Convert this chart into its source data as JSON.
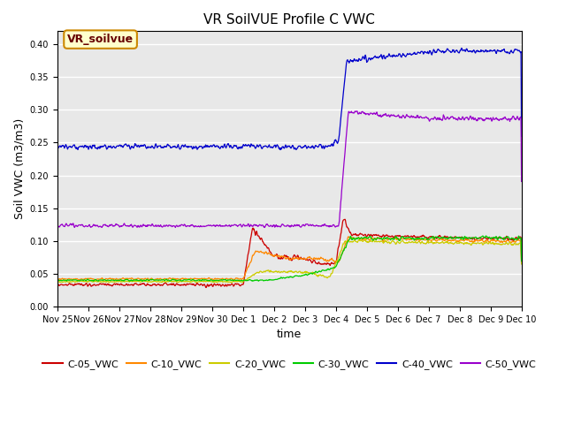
{
  "title": "VR SoilVUE Profile C VWC",
  "xlabel": "time",
  "ylabel": "Soil VWC (m3/m3)",
  "ylim": [
    0.0,
    0.42
  ],
  "yticks": [
    0.0,
    0.05,
    0.1,
    0.15,
    0.2,
    0.25,
    0.3,
    0.35,
    0.4
  ],
  "background_color": "#e8e8e8",
  "series": [
    {
      "label": "C-05_VWC",
      "color": "#cc0000"
    },
    {
      "label": "C-10_VWC",
      "color": "#ff8800"
    },
    {
      "label": "C-20_VWC",
      "color": "#cccc00"
    },
    {
      "label": "C-30_VWC",
      "color": "#00cc00"
    },
    {
      "label": "C-40_VWC",
      "color": "#0000cc"
    },
    {
      "label": "C-50_VWC",
      "color": "#9900cc"
    }
  ],
  "legend_label": "VR_soilvue",
  "legend_box_color": "#ffffcc",
  "legend_box_edge": "#cc8800",
  "legend_text_color": "#660000",
  "num_points": 1000
}
